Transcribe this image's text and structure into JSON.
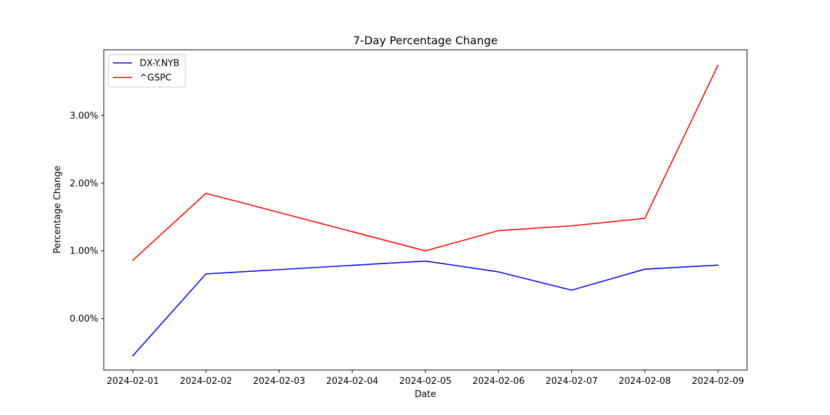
{
  "chart_data": {
    "type": "line",
    "title": "7-Day Percentage Change",
    "xlabel": "Date",
    "ylabel": "Percentage Change",
    "x": [
      "2024-02-01",
      "2024-02-02",
      "2024-02-03",
      "2024-02-04",
      "2024-02-05",
      "2024-02-06",
      "2024-02-07",
      "2024-02-08",
      "2024-02-09"
    ],
    "series": [
      {
        "name": "DX-Y.NYB",
        "color": "#0000ff",
        "points": [
          {
            "x": "2024-02-01",
            "y": -0.55
          },
          {
            "x": "2024-02-02",
            "y": 0.66
          },
          {
            "x": "2024-02-05",
            "y": 0.85
          },
          {
            "x": "2024-02-06",
            "y": 0.69
          },
          {
            "x": "2024-02-07",
            "y": 0.42
          },
          {
            "x": "2024-02-08",
            "y": 0.73
          },
          {
            "x": "2024-02-09",
            "y": 0.79
          }
        ]
      },
      {
        "name": "^GSPC",
        "color": "#ff0000",
        "points": [
          {
            "x": "2024-02-01",
            "y": 0.86
          },
          {
            "x": "2024-02-02",
            "y": 1.85
          },
          {
            "x": "2024-02-05",
            "y": 1.0
          },
          {
            "x": "2024-02-06",
            "y": 1.3
          },
          {
            "x": "2024-02-07",
            "y": 1.37
          },
          {
            "x": "2024-02-08",
            "y": 1.48
          },
          {
            "x": "2024-02-09",
            "y": 3.74
          }
        ]
      }
    ],
    "yticks": [
      0,
      1,
      2,
      3
    ],
    "ytick_labels": [
      "0.00%",
      "1.00%",
      "2.00%",
      "3.00%"
    ],
    "ylim": [
      -0.76,
      3.97
    ],
    "grid": false,
    "legend": "top-left"
  }
}
